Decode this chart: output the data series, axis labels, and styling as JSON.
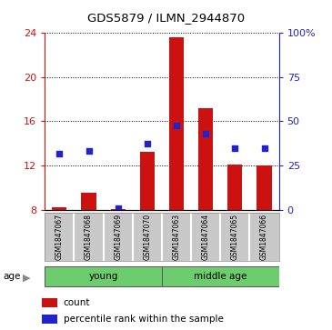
{
  "title": "GDS5879 / ILMN_2944870",
  "samples": [
    "GSM1847067",
    "GSM1847068",
    "GSM1847069",
    "GSM1847070",
    "GSM1847063",
    "GSM1847064",
    "GSM1847065",
    "GSM1847066"
  ],
  "groups": [
    {
      "name": "young",
      "span": [
        0,
        3
      ],
      "color": "#90ee90"
    },
    {
      "name": "middle age",
      "span": [
        4,
        7
      ],
      "color": "#90ee90"
    }
  ],
  "bar_heights": [
    8.2,
    9.5,
    8.05,
    13.2,
    23.6,
    17.2,
    12.1,
    12.0
  ],
  "bar_base": 8.0,
  "blue_dots_left": [
    13.1,
    13.3,
    8.1,
    14.0,
    15.6,
    14.9,
    13.6,
    13.6
  ],
  "ylim_left": [
    8,
    24
  ],
  "ylim_right": [
    0,
    100
  ],
  "yticks_left": [
    8,
    12,
    16,
    20,
    24
  ],
  "yticks_right": [
    0,
    25,
    50,
    75,
    100
  ],
  "bar_color": "#cc1111",
  "dot_color": "#2222cc",
  "bar_width": 0.5,
  "age_label": "age",
  "legend_count": "count",
  "legend_percentile": "percentile rank within the sample",
  "sample_bg": "#c8c8c8",
  "plot_bg": "#ffffff",
  "ylabel_left_color": "#cc1111",
  "ylabel_right_color": "#2222cc",
  "green_color": "#6dcc6d"
}
